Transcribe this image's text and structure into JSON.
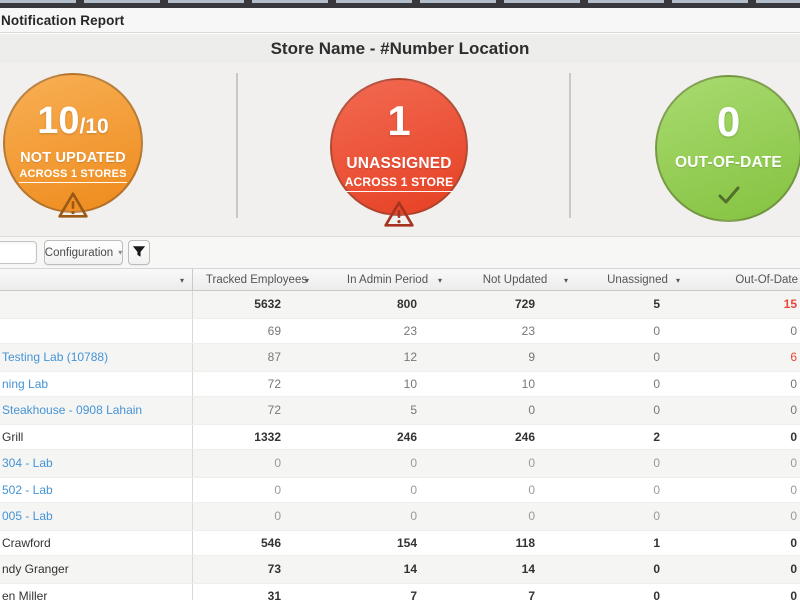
{
  "header": {
    "title": "Notification Report"
  },
  "page_title": "Store Name - #Number Location",
  "summary": {
    "circles": [
      {
        "id": "not-updated",
        "value": "10",
        "value_suffix": "/10",
        "label": "NOT UPDATED",
        "sublabel": "ACROSS 1 STORES",
        "icon": "warning-triangle-icon",
        "color_top": "#f8b055",
        "color_bottom": "#ee8a1c"
      },
      {
        "id": "unassigned",
        "value": "1",
        "label": "UNASSIGNED",
        "sublabel": "ACROSS 1 STORE",
        "icon": "warning-triangle-icon",
        "color_top": "#f26a52",
        "color_bottom": "#e64023"
      },
      {
        "id": "out-of-date",
        "value": "0",
        "label": "OUT-OF-DATE",
        "icon": "checkmark-icon",
        "color_top": "#a9db70",
        "color_bottom": "#84c240"
      }
    ]
  },
  "toolbar": {
    "search_value": "",
    "configuration_label": "Configuration",
    "filter_icon": "filter-funnel-icon"
  },
  "icons": {
    "sort_caret": "▾",
    "dropdown_caret": "▼"
  },
  "status_colors": {
    "alert_red": "#e8473a",
    "link_blue": "#4593d8"
  },
  "table": {
    "columns": [
      {
        "label": "",
        "sortable": true
      },
      {
        "label": "Tracked Employees",
        "sortable": true
      },
      {
        "label": "In Admin Period",
        "sortable": true
      },
      {
        "label": "Not Updated",
        "sortable": true
      },
      {
        "label": "Unassigned",
        "sortable": true
      },
      {
        "label": "Out-Of-Date",
        "sortable": false
      }
    ],
    "rows": [
      {
        "name": "",
        "link": false,
        "weight": "bold",
        "values": [
          "5632",
          "800",
          "729",
          "5",
          "15"
        ],
        "red": [
          false,
          false,
          false,
          false,
          true
        ]
      },
      {
        "name": "",
        "link": false,
        "weight": "reg",
        "values": [
          "69",
          "23",
          "23",
          "0",
          "0"
        ],
        "red": [
          false,
          false,
          false,
          false,
          false
        ]
      },
      {
        "name": "Testing Lab (10788)",
        "link": true,
        "weight": "reg",
        "values": [
          "87",
          "12",
          "9",
          "0",
          "6"
        ],
        "red": [
          false,
          false,
          false,
          false,
          true
        ]
      },
      {
        "name": "ning Lab",
        "link": true,
        "weight": "reg",
        "values": [
          "72",
          "10",
          "10",
          "0",
          "0"
        ],
        "red": [
          false,
          false,
          false,
          false,
          false
        ]
      },
      {
        "name": "Steakhouse - 0908 Lahain",
        "link": true,
        "weight": "reg",
        "values": [
          "72",
          "5",
          "0",
          "0",
          "0"
        ],
        "red": [
          false,
          false,
          false,
          false,
          false
        ]
      },
      {
        "name": "Grill",
        "link": false,
        "weight": "bold",
        "values": [
          "1332",
          "246",
          "246",
          "2",
          "0"
        ],
        "red": [
          false,
          false,
          false,
          false,
          false
        ]
      },
      {
        "name": "304 - Lab",
        "link": true,
        "weight": "light",
        "values": [
          "0",
          "0",
          "0",
          "0",
          "0"
        ],
        "red": [
          false,
          false,
          false,
          false,
          false
        ]
      },
      {
        "name": "502 - Lab",
        "link": true,
        "weight": "light",
        "values": [
          "0",
          "0",
          "0",
          "0",
          "0"
        ],
        "red": [
          false,
          false,
          false,
          false,
          false
        ]
      },
      {
        "name": "005 - Lab",
        "link": true,
        "weight": "light",
        "values": [
          "0",
          "0",
          "0",
          "0",
          "0"
        ],
        "red": [
          false,
          false,
          false,
          false,
          false
        ]
      },
      {
        "name": "Crawford",
        "link": false,
        "weight": "bold",
        "values": [
          "546",
          "154",
          "118",
          "1",
          "0"
        ],
        "red": [
          false,
          false,
          false,
          false,
          false
        ]
      },
      {
        "name": "ndy Granger",
        "link": false,
        "weight": "bold",
        "values": [
          "73",
          "14",
          "14",
          "0",
          "0"
        ],
        "red": [
          false,
          false,
          false,
          false,
          false
        ]
      },
      {
        "name": "en Miller",
        "link": false,
        "weight": "bold",
        "values": [
          "31",
          "7",
          "7",
          "0",
          "0"
        ],
        "red": [
          false,
          false,
          false,
          false,
          false
        ]
      }
    ]
  }
}
